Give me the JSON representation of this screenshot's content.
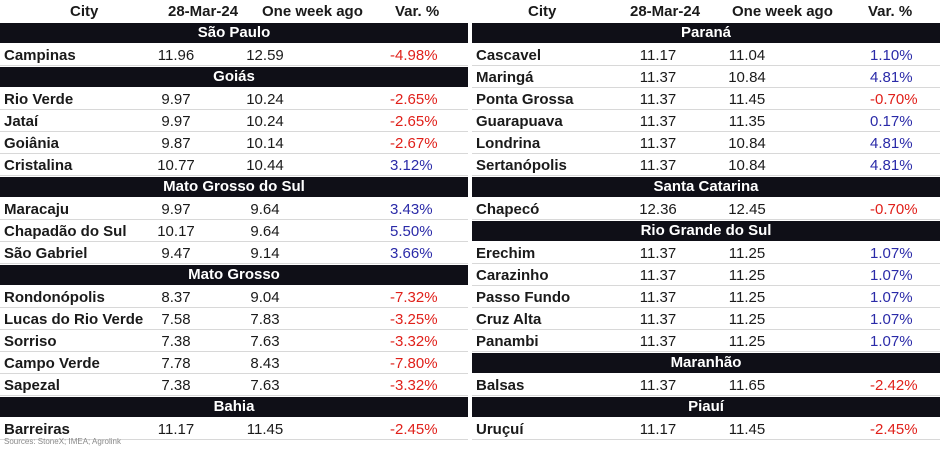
{
  "headers": {
    "city": "City",
    "current": "28-Mar-24",
    "previous": "One week ago",
    "variation": "Var. %"
  },
  "left": [
    {
      "region": "São Paulo",
      "rows": [
        {
          "city": "Campinas",
          "current": "11.96",
          "previous": "12.59",
          "var": "-4.98%"
        }
      ]
    },
    {
      "region": "Goiás",
      "rows": [
        {
          "city": "Rio Verde",
          "current": "9.97",
          "previous": "10.24",
          "var": "-2.65%"
        },
        {
          "city": "Jataí",
          "current": "9.97",
          "previous": "10.24",
          "var": "-2.65%"
        },
        {
          "city": "Goiânia",
          "current": "9.87",
          "previous": "10.14",
          "var": "-2.67%"
        },
        {
          "city": "Cristalina",
          "current": "10.77",
          "previous": "10.44",
          "var": "3.12%"
        }
      ]
    },
    {
      "region": "Mato Grosso do Sul",
      "rows": [
        {
          "city": "Maracaju",
          "current": "9.97",
          "previous": "9.64",
          "var": "3.43%"
        },
        {
          "city": "Chapadão do Sul",
          "current": "10.17",
          "previous": "9.64",
          "var": "5.50%"
        },
        {
          "city": "São Gabriel",
          "current": "9.47",
          "previous": "9.14",
          "var": "3.66%"
        }
      ]
    },
    {
      "region": "Mato Grosso",
      "rows": [
        {
          "city": "Rondonópolis",
          "current": "8.37",
          "previous": "9.04",
          "var": "-7.32%"
        },
        {
          "city": "Lucas do Rio Verde",
          "current": "7.58",
          "previous": "7.83",
          "var": "-3.25%"
        },
        {
          "city": "Sorriso",
          "current": "7.38",
          "previous": "7.63",
          "var": "-3.32%"
        },
        {
          "city": "Campo Verde",
          "current": "7.78",
          "previous": "8.43",
          "var": "-7.80%"
        },
        {
          "city": "Sapezal",
          "current": "7.38",
          "previous": "7.63",
          "var": "-3.32%"
        }
      ]
    },
    {
      "region": "Bahia",
      "rows": [
        {
          "city": "Barreiras",
          "current": "11.17",
          "previous": "11.45",
          "var": "-2.45%"
        }
      ]
    }
  ],
  "right": [
    {
      "region": "Paraná",
      "rows": [
        {
          "city": "Cascavel",
          "current": "11.17",
          "previous": "11.04",
          "var": "1.10%"
        },
        {
          "city": "Maringá",
          "current": "11.37",
          "previous": "10.84",
          "var": "4.81%"
        },
        {
          "city": "Ponta Grossa",
          "current": "11.37",
          "previous": "11.45",
          "var": "-0.70%"
        },
        {
          "city": "Guarapuava",
          "current": "11.37",
          "previous": "11.35",
          "var": "0.17%"
        },
        {
          "city": "Londrina",
          "current": "11.37",
          "previous": "10.84",
          "var": "4.81%"
        },
        {
          "city": "Sertanópolis",
          "current": "11.37",
          "previous": "10.84",
          "var": "4.81%"
        }
      ]
    },
    {
      "region": "Santa Catarina",
      "rows": [
        {
          "city": "Chapecó",
          "current": "12.36",
          "previous": "12.45",
          "var": "-0.70%"
        }
      ]
    },
    {
      "region": "Rio Grande do Sul",
      "rows": [
        {
          "city": "Erechim",
          "current": "11.37",
          "previous": "11.25",
          "var": "1.07%"
        },
        {
          "city": "Carazinho",
          "current": "11.37",
          "previous": "11.25",
          "var": "1.07%"
        },
        {
          "city": "Passo Fundo",
          "current": "11.37",
          "previous": "11.25",
          "var": "1.07%"
        },
        {
          "city": "Cruz Alta",
          "current": "11.37",
          "previous": "11.25",
          "var": "1.07%"
        },
        {
          "city": "Panambi",
          "current": "11.37",
          "previous": "11.25",
          "var": "1.07%"
        }
      ]
    },
    {
      "region": "Maranhão",
      "rows": [
        {
          "city": "Balsas",
          "current": "11.37",
          "previous": "11.65",
          "var": "-2.42%"
        }
      ]
    },
    {
      "region": "Piauí",
      "rows": [
        {
          "city": "Uruçuí",
          "current": "11.17",
          "previous": "11.45",
          "var": "-2.45%"
        }
      ]
    }
  ],
  "sources": "Sources: StoneX; IMEA; Agrolink",
  "colors": {
    "negative": "#e0201a",
    "positive": "#2a2aa8",
    "region_bar": "#0f0f17"
  }
}
